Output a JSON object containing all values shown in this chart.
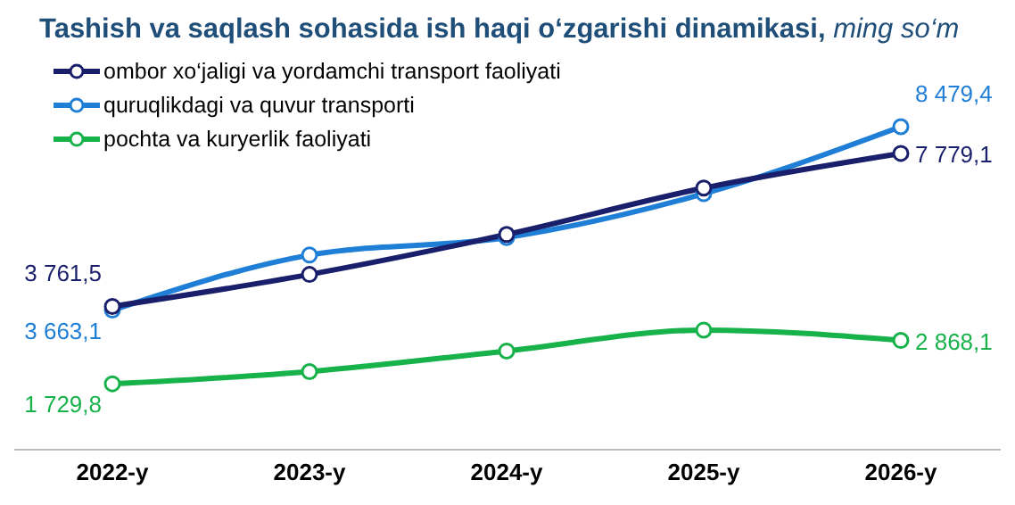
{
  "chart_data": {
    "type": "line",
    "title": "Tashish va saqlash sohasida ish haqi o‘zgarishi dinamikasi,",
    "subtitle": "ming so‘m",
    "categories": [
      "2022-y",
      "2023-y",
      "2024-y",
      "2025-y",
      "2026-y"
    ],
    "series": [
      {
        "name": "ombor xo‘jaligi va yordamchi transport faoliyati",
        "color": "#1a1f6b",
        "values": [
          3761.5,
          4600,
          5650,
          6870,
          7779.1
        ],
        "value_labels": [
          "3 761,5",
          null,
          null,
          null,
          "7 779,1"
        ]
      },
      {
        "name": "quruqlikdagi va quvur transporti",
        "color": "#1f7fd6",
        "values": [
          3663.1,
          5110,
          5570,
          6720,
          8479.4
        ],
        "value_labels": [
          "3 663,1",
          null,
          null,
          null,
          "8 479,4"
        ]
      },
      {
        "name": "pochta va kuryerlik faoliyati",
        "color": "#17b24a",
        "values": [
          1729.8,
          2050,
          2590,
          3140,
          2868.1
        ],
        "value_labels": [
          "1 729,8",
          null,
          null,
          null,
          "2 868,1"
        ]
      }
    ],
    "legend": "top left",
    "marker": "circle",
    "line_style": "solid",
    "grid": false
  }
}
